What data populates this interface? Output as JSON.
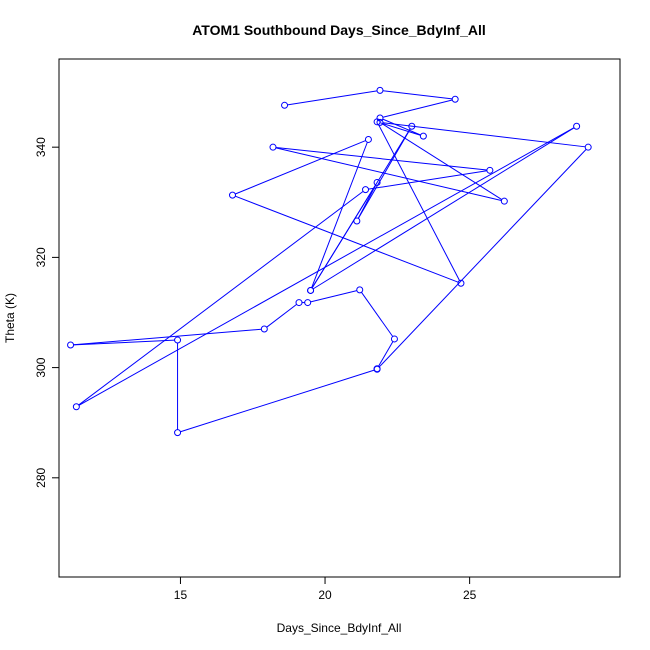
{
  "chart_data": {
    "type": "line",
    "title": "ATOM1 Southbound Days_Since_BdyInf_All",
    "xlabel": "Days_Since_BdyInf_All",
    "ylabel": "Theta (K)",
    "xlim": [
      10.8,
      30.2
    ],
    "ylim": [
      262,
      356
    ],
    "x_ticks": [
      15,
      20,
      25
    ],
    "y_ticks": [
      280,
      300,
      320,
      340
    ],
    "grid": false,
    "legend": "none",
    "series": [
      {
        "marker": "open-circle",
        "color": "#0000ff",
        "points": [
          [
            18.6,
            347.6
          ],
          [
            21.9,
            350.3
          ],
          [
            24.5,
            348.7
          ],
          [
            21.9,
            345.3
          ],
          [
            23.4,
            342.0
          ],
          [
            21.8,
            344.6
          ],
          [
            24.7,
            315.3
          ],
          [
            16.8,
            331.3
          ],
          [
            21.5,
            341.4
          ],
          [
            19.5,
            314.0
          ],
          [
            23.0,
            343.8
          ],
          [
            21.1,
            326.6
          ],
          [
            21.8,
            333.6
          ],
          [
            19.5,
            314.0
          ],
          [
            28.7,
            343.8
          ],
          [
            11.4,
            292.9
          ],
          [
            21.4,
            332.3
          ],
          [
            25.7,
            335.8
          ],
          [
            18.2,
            340.0
          ],
          [
            26.2,
            330.2
          ],
          [
            21.9,
            344.5
          ],
          [
            29.1,
            340.0
          ],
          [
            21.8,
            299.7
          ],
          [
            14.9,
            288.2
          ],
          [
            14.9,
            305.0
          ],
          [
            11.2,
            304.1
          ],
          [
            17.9,
            307.0
          ],
          [
            19.1,
            311.8
          ],
          [
            19.4,
            311.8
          ],
          [
            21.2,
            314.1
          ],
          [
            22.4,
            305.2
          ],
          [
            21.8,
            299.8
          ]
        ]
      }
    ]
  }
}
